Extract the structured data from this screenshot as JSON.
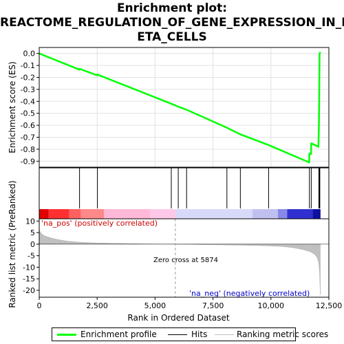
{
  "title_lines": [
    "Enrichment plot:",
    "REACTOME_REGULATION_OF_GENE_EXPRESSION_IN_B",
    "ETA_CELLS"
  ],
  "colors": {
    "es_line": "#00ff00",
    "hit_line": "#000000",
    "metric_fill": "#c0c0c0",
    "zero_cross_line": "#a0a0a0",
    "pos_text": "#cc0000",
    "neg_text": "#0000cc"
  },
  "chart_data": [
    {
      "type": "line",
      "panel": "enrichment",
      "ylabel": "Enrichment score (ES)",
      "xlim": [
        0,
        12500
      ],
      "ylim": [
        -0.95,
        0.05
      ],
      "yticks": [
        0.0,
        -0.1,
        -0.2,
        -0.3,
        -0.4,
        -0.5,
        -0.6,
        -0.7,
        -0.8,
        -0.9
      ],
      "ytick_labels": [
        "0.0",
        "-0.1",
        "-0.2",
        "-0.3",
        "-0.4",
        "-0.5",
        "-0.6",
        "-0.7",
        "-0.8",
        "-0.9"
      ],
      "grid": true,
      "series": [
        {
          "x": [
            0,
            1730,
            1740,
            2500,
            2510,
            5700,
            6000,
            6360,
            8100,
            8680,
            9900,
            11650,
            11660,
            11730,
            11740,
            12050,
            12070,
            12080,
            12090,
            12100,
            12110,
            12120,
            12140
          ],
          "y": [
            0.0,
            -0.135,
            -0.128,
            -0.183,
            -0.176,
            -0.42,
            -0.445,
            -0.47,
            -0.62,
            -0.675,
            -0.765,
            -0.91,
            -0.835,
            -0.84,
            -0.75,
            -0.78,
            -0.62,
            -0.43,
            -0.21,
            0.0,
            0.005,
            0.005,
            0.0
          ]
        }
      ]
    },
    {
      "type": "hits",
      "panel": "hits",
      "positions": [
        1740,
        2510,
        5700,
        6000,
        6360,
        8100,
        8680,
        9900,
        11660,
        11740,
        12070,
        12080,
        12100,
        12110
      ]
    },
    {
      "type": "area",
      "panel": "ranked_metric",
      "xlabel": "Rank in Ordered Dataset",
      "ylabel": "Ranked list metric (PreRanked)",
      "xlim": [
        0,
        12500
      ],
      "ylim": [
        -23,
        11
      ],
      "xticks": [
        0,
        2500,
        5000,
        7500,
        10000,
        12500
      ],
      "xtick_labels": [
        "0",
        "2,500",
        "5,000",
        "7,500",
        "10,000",
        "12,500"
      ],
      "yticks": [
        10,
        5,
        0,
        -5,
        -10,
        -15,
        -20
      ],
      "ytick_labels": [
        "10",
        "5",
        "0",
        "-5",
        "-10",
        "-15",
        "-20"
      ],
      "x": [
        0,
        30,
        100,
        250,
        500,
        800,
        1200,
        1800,
        2500,
        3500,
        4500,
        5874,
        7000,
        8500,
        9500,
        10500,
        11000,
        11400,
        11700,
        11900,
        12000,
        12060,
        12100,
        12130
      ],
      "values": [
        6.5,
        5.5,
        4.5,
        3.5,
        2.7,
        2.0,
        1.3,
        0.8,
        0.5,
        0.3,
        0.1,
        0.0,
        -0.2,
        -0.4,
        -0.6,
        -1.0,
        -1.6,
        -2.4,
        -3.3,
        -4.5,
        -6.0,
        -8.0,
        -12.0,
        -22.0
      ],
      "zero_cross": 5874,
      "zero_cross_label": "Zero cross at 5874",
      "pos_label": "'na_pos' (positively correlated)",
      "neg_label": "'na_neg' (negatively correlated)"
    },
    {
      "type": "heatmap",
      "panel": "rank_colorbar",
      "colors": [
        "#e00000",
        "#ff3030",
        "#ff6060",
        "#ff8888",
        "#ffb8d8",
        "#ffc8e8",
        "#d8d8f8",
        "#c0c0f0",
        "#8888e8",
        "#3030d0",
        "#1010a0"
      ],
      "breaks": [
        0,
        400,
        1300,
        1800,
        2800,
        4800,
        5874,
        9200,
        10300,
        10700,
        11800,
        12140
      ]
    }
  ],
  "legend": {
    "items": [
      "Enrichment profile",
      "Hits",
      "Ranking metric scores"
    ]
  }
}
